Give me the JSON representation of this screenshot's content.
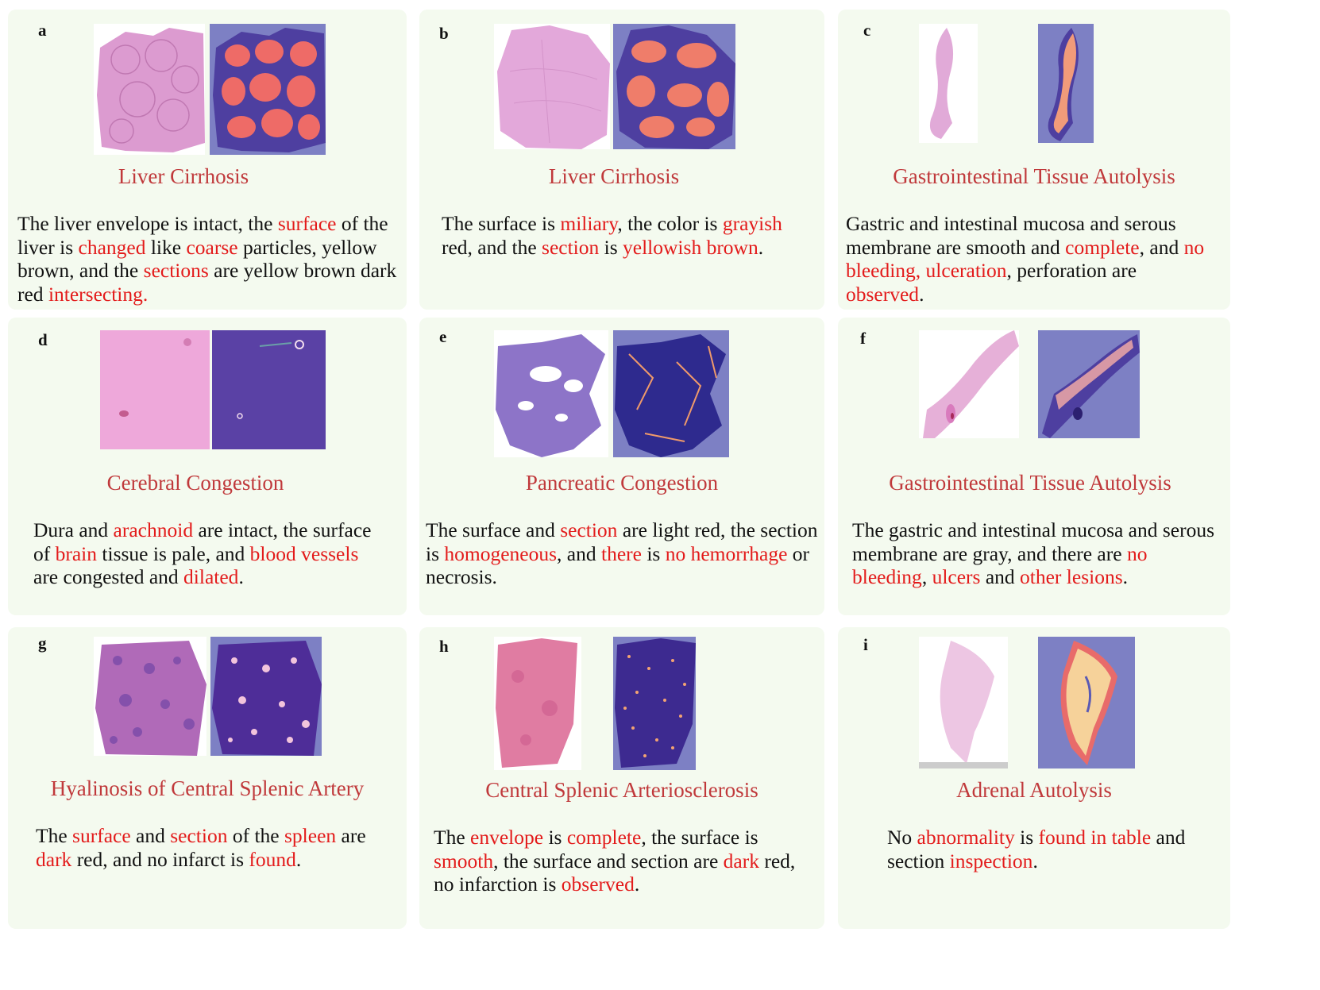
{
  "panels": [
    {
      "letter": "a",
      "title": "Liver Cirrhosis",
      "desc": [
        {
          "t": "The liver envelope is intact, the "
        },
        {
          "t": "surface",
          "hl": true
        },
        {
          "t": " of the liver is "
        },
        {
          "t": "changed",
          "hl": true
        },
        {
          "t": " like "
        },
        {
          "t": "coarse",
          "hl": true
        },
        {
          "t": " particles, yellow brown, and the "
        },
        {
          "t": "sections",
          "hl": true
        },
        {
          "t": " are yellow brown dark red "
        },
        {
          "t": "intersecting.",
          "hl": true
        }
      ]
    },
    {
      "letter": "b",
      "title": "Liver Cirrhosis",
      "desc": [
        {
          "t": "The surface is "
        },
        {
          "t": "miliary",
          "hl": true
        },
        {
          "t": ", the color is "
        },
        {
          "t": "grayish",
          "hl": true
        },
        {
          "t": " red, and the "
        },
        {
          "t": "section",
          "hl": true
        },
        {
          "t": " is "
        },
        {
          "t": "yellowish brown",
          "hl": true
        },
        {
          "t": "."
        }
      ]
    },
    {
      "letter": "c",
      "title": "Gastrointestinal Tissue Autolysis",
      "desc": [
        {
          "t": "Gastric and intestinal mucosa and serous membrane are smooth and "
        },
        {
          "t": "complete",
          "hl": true
        },
        {
          "t": ", and "
        },
        {
          "t": "no bleeding, ulceration",
          "hl": true
        },
        {
          "t": ", perforation are "
        },
        {
          "t": "observed",
          "hl": true
        },
        {
          "t": "."
        }
      ]
    },
    {
      "letter": "d",
      "title": "Cerebral Congestion",
      "desc": [
        {
          "t": "Dura and "
        },
        {
          "t": "arachnoid",
          "hl": true
        },
        {
          "t": " are intact, the surface of "
        },
        {
          "t": "brain",
          "hl": true
        },
        {
          "t": " tissue is pale, and "
        },
        {
          "t": "blood vessels",
          "hl": true
        },
        {
          "t": " are congested and "
        },
        {
          "t": "dilated",
          "hl": true
        },
        {
          "t": "."
        }
      ]
    },
    {
      "letter": "e",
      "title": "Pancreatic Congestion",
      "desc": [
        {
          "t": "The surface and "
        },
        {
          "t": "section",
          "hl": true
        },
        {
          "t": " are light red, the section is "
        },
        {
          "t": "homogeneous",
          "hl": true
        },
        {
          "t": ", and "
        },
        {
          "t": "there",
          "hl": true
        },
        {
          "t": " is "
        },
        {
          "t": "no hemorrhage",
          "hl": true
        },
        {
          "t": " or necrosis."
        }
      ]
    },
    {
      "letter": "f",
      "title": "Gastrointestinal Tissue Autolysis",
      "desc": [
        {
          "t": "The gastric and intestinal mucosa and serous membrane are gray, and there are "
        },
        {
          "t": "no bleeding",
          "hl": true
        },
        {
          "t": ", "
        },
        {
          "t": "ulcers",
          "hl": true
        },
        {
          "t": " and "
        },
        {
          "t": "other lesions",
          "hl": true
        },
        {
          "t": "."
        }
      ]
    },
    {
      "letter": "g",
      "title": "Hyalinosis of Central Splenic Artery",
      "desc": [
        {
          "t": "The "
        },
        {
          "t": "surface",
          "hl": true
        },
        {
          "t": " and "
        },
        {
          "t": "section",
          "hl": true
        },
        {
          "t": " of the "
        },
        {
          "t": "spleen",
          "hl": true
        },
        {
          "t": " are "
        },
        {
          "t": "dark",
          "hl": true
        },
        {
          "t": " red, and no infarct is "
        },
        {
          "t": "found",
          "hl": true
        },
        {
          "t": "."
        }
      ]
    },
    {
      "letter": "h",
      "title": "Central Splenic Arteriosclerosis",
      "desc": [
        {
          "t": "The "
        },
        {
          "t": "envelope",
          "hl": true
        },
        {
          "t": " is "
        },
        {
          "t": "complete",
          "hl": true
        },
        {
          "t": ", the surface is "
        },
        {
          "t": "smooth",
          "hl": true
        },
        {
          "t": ", the surface and section are "
        },
        {
          "t": "dark",
          "hl": true
        },
        {
          "t": " red, no infarction is "
        },
        {
          "t": "observed",
          "hl": true
        },
        {
          "t": "."
        }
      ]
    },
    {
      "letter": "i",
      "title": "Adrenal Autolysis",
      "desc": [
        {
          "t": "No "
        },
        {
          "t": "abnormality",
          "hl": true
        },
        {
          "t": " is "
        },
        {
          "t": "found in table",
          "hl": true
        },
        {
          "t": " and section "
        },
        {
          "t": "inspection",
          "hl": true
        },
        {
          "t": "."
        }
      ]
    }
  ]
}
